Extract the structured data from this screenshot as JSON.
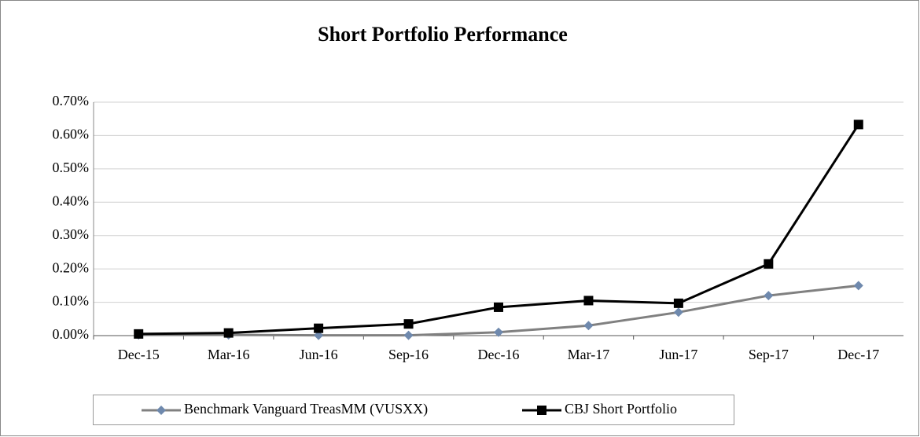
{
  "chart_data": {
    "type": "line",
    "title": "Short Portfolio Performance",
    "categories": [
      "Dec-15",
      "Mar-16",
      "Jun-16",
      "Sep-16",
      "Dec-16",
      "Mar-17",
      "Jun-17",
      "Sep-17",
      "Dec-17"
    ],
    "series": [
      {
        "name": "Benchmark Vanguard TreasMM (VUSXX)",
        "color": "#808080",
        "marker_color": "#6f89ad",
        "marker": "diamond",
        "values": [
          0.002,
          0.002,
          0.001,
          0.001,
          0.01,
          0.03,
          0.07,
          0.12,
          0.15
        ]
      },
      {
        "name": "CBJ Short Portfolio",
        "color": "#000000",
        "marker_color": "#000000",
        "marker": "square",
        "values": [
          0.005,
          0.008,
          0.022,
          0.035,
          0.085,
          0.105,
          0.097,
          0.215,
          0.633
        ]
      }
    ],
    "ylim": [
      0,
      0.7
    ],
    "yticks": [
      {
        "value": 0,
        "label": "0.00%"
      },
      {
        "value": 0.1,
        "label": "0.10%"
      },
      {
        "value": 0.2,
        "label": "0.20%"
      },
      {
        "value": 0.3,
        "label": "0.30%"
      },
      {
        "value": 0.4,
        "label": "0.40%"
      },
      {
        "value": 0.5,
        "label": "0.50%"
      },
      {
        "value": 0.6,
        "label": "0.60%"
      },
      {
        "value": 0.7,
        "label": "0.70%"
      }
    ],
    "grid": true,
    "legend": "bottom"
  }
}
